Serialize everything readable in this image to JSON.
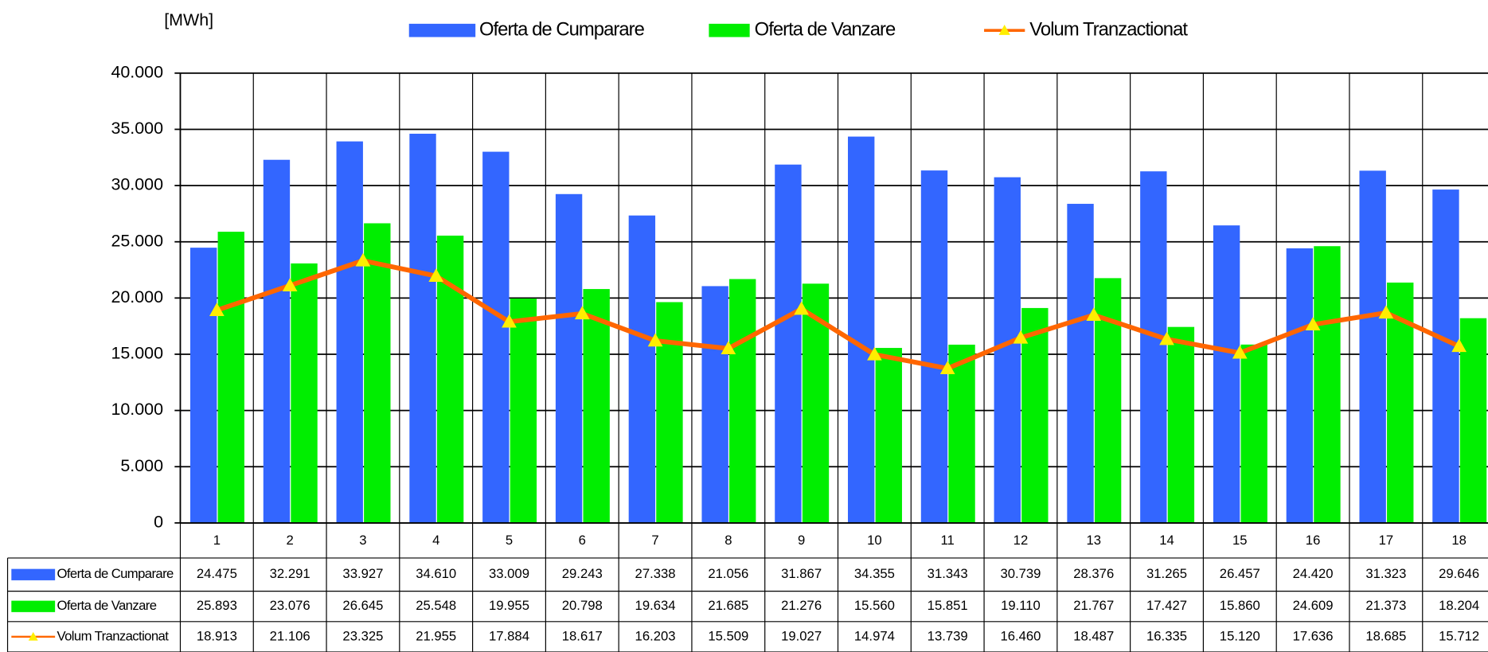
{
  "chart_data": {
    "type": "bar",
    "y_label": "[MWh]",
    "categories": [
      "1",
      "2",
      "3",
      "4",
      "5",
      "6",
      "7",
      "8",
      "9",
      "10",
      "11",
      "12",
      "13",
      "14",
      "15",
      "16",
      "17",
      "18"
    ],
    "series": [
      {
        "name": "Oferta de Cumparare",
        "type": "bar",
        "color": "#3366ff",
        "values": [
          24475,
          32291,
          33927,
          34610,
          33009,
          29243,
          27338,
          21056,
          31867,
          34355,
          31343,
          30739,
          28376,
          31265,
          26457,
          24420,
          31323,
          29646
        ],
        "value_labels": [
          "24.475",
          "32.291",
          "33.927",
          "34.610",
          "33.009",
          "29.243",
          "27.338",
          "21.056",
          "31.867",
          "34.355",
          "31.343",
          "30.739",
          "28.376",
          "31.265",
          "26.457",
          "24.420",
          "31.323",
          "29.646"
        ]
      },
      {
        "name": "Oferta de Vanzare",
        "type": "bar",
        "color": "#00ee00",
        "values": [
          25893,
          23076,
          26645,
          25548,
          19955,
          20798,
          19634,
          21685,
          21276,
          15560,
          15851,
          19110,
          21767,
          17427,
          15860,
          24609,
          21373,
          18204
        ],
        "value_labels": [
          "25.893",
          "23.076",
          "26.645",
          "25.548",
          "19.955",
          "20.798",
          "19.634",
          "21.685",
          "21.276",
          "15.560",
          "15.851",
          "19.110",
          "21.767",
          "17.427",
          "15.860",
          "24.609",
          "21.373",
          "18.204"
        ]
      },
      {
        "name": "Volum Tranzactionat",
        "type": "line",
        "color": "#ff6600",
        "marker_color": "#ffee00",
        "values": [
          18913,
          21106,
          23325,
          21955,
          17884,
          18617,
          16203,
          15509,
          19027,
          14974,
          13739,
          16460,
          18487,
          16335,
          15120,
          17636,
          18685,
          15712
        ],
        "value_labels": [
          "18.913",
          "21.106",
          "23.325",
          "21.955",
          "17.884",
          "18.617",
          "16.203",
          "15.509",
          "19.027",
          "14.974",
          "13.739",
          "16.460",
          "18.487",
          "16.335",
          "15.120",
          "17.636",
          "18.685",
          "15.712"
        ]
      }
    ],
    "ylim": [
      0,
      40000
    ],
    "yticks": [
      0,
      {
        "value": 5000,
        "label": "5.000"
      },
      {
        "value": 10000,
        "label": "10.000"
      },
      {
        "value": 15000,
        "label": "15.000"
      },
      {
        "value": 20000,
        "label": "20.000"
      },
      {
        "value": 25000,
        "label": "25.000"
      },
      {
        "value": 30000,
        "label": "30.000"
      },
      {
        "value": 35000,
        "label": "35.000"
      },
      {
        "value": 40000,
        "label": "40.000"
      }
    ],
    "grid": true,
    "legend": "top",
    "data_table": true
  }
}
